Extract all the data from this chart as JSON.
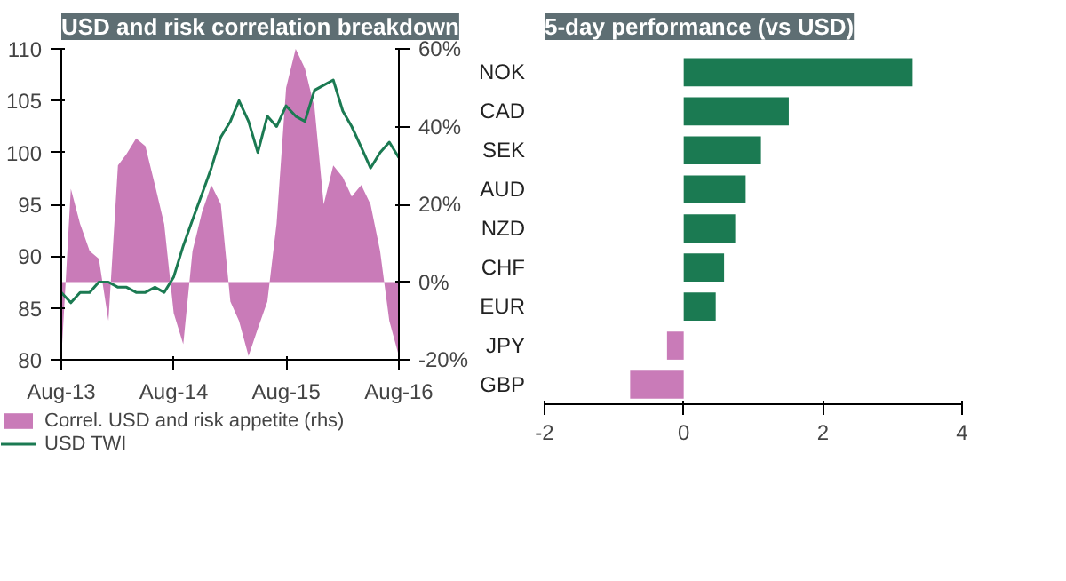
{
  "chart_data": [
    {
      "type": "line",
      "title": "USD and risk correlation breakdown",
      "x": [
        "2013-08",
        "2013-09",
        "2013-10",
        "2013-11",
        "2013-12",
        "2014-01",
        "2014-02",
        "2014-03",
        "2014-04",
        "2014-05",
        "2014-06",
        "2014-07",
        "2014-08",
        "2014-09",
        "2014-10",
        "2014-11",
        "2014-12",
        "2015-01",
        "2015-02",
        "2015-03",
        "2015-04",
        "2015-05",
        "2015-06",
        "2015-07",
        "2015-08",
        "2015-09",
        "2015-10",
        "2015-11",
        "2015-12",
        "2016-01",
        "2016-02",
        "2016-03",
        "2016-04",
        "2016-05",
        "2016-06",
        "2016-07",
        "2016-08"
      ],
      "series": [
        {
          "name": "Correl. USD and risk appetite (rhs)",
          "type": "area",
          "axis": "y2",
          "color": "#c97bb8",
          "values": [
            -20,
            24,
            15,
            8,
            6,
            -10,
            30,
            33,
            37,
            35,
            25,
            15,
            -8,
            -16,
            8,
            18,
            25,
            20,
            -5,
            -10,
            -19,
            -12,
            -5,
            15,
            50,
            60,
            55,
            45,
            20,
            30,
            27,
            22,
            25,
            20,
            8,
            -10,
            -19
          ]
        },
        {
          "name": "USD TWI",
          "type": "line",
          "color": "#1b7a52",
          "values": [
            86.5,
            85.5,
            86.5,
            86.5,
            87.5,
            87.5,
            87,
            87,
            86.5,
            86.5,
            87,
            86.5,
            88,
            91,
            93.5,
            96,
            98.5,
            101.5,
            103,
            105,
            103,
            100,
            103.5,
            102.5,
            104.5,
            103.5,
            103,
            106,
            106.5,
            107,
            104,
            102.5,
            100.5,
            98.5,
            100,
            101,
            99.5
          ]
        }
      ],
      "xlim": [
        "2013-08",
        "2016-08"
      ],
      "xticks": [
        {
          "value": "2013-08",
          "label": "Aug-13"
        },
        {
          "value": "2014-08",
          "label": "Aug-14"
        },
        {
          "value": "2015-08",
          "label": "Aug-15"
        },
        {
          "value": "2016-08",
          "label": "Aug-16"
        }
      ],
      "ylim": [
        80,
        110
      ],
      "yticks": [
        80,
        85,
        90,
        95,
        100,
        105,
        110
      ],
      "y2lim": [
        -20,
        60
      ],
      "y2ticks": [
        {
          "value": -20,
          "label": "-20%"
        },
        {
          "value": 0,
          "label": "0%"
        },
        {
          "value": 20,
          "label": "20%"
        },
        {
          "value": 40,
          "label": "40%"
        },
        {
          "value": 60,
          "label": "60%"
        }
      ],
      "grid": false,
      "legend": "bottom"
    },
    {
      "type": "bar",
      "orientation": "horizontal",
      "title": "5-day performance (vs USD)",
      "categories": [
        "NOK",
        "CAD",
        "SEK",
        "AUD",
        "NZD",
        "CHF",
        "EUR",
        "JPY",
        "GBP"
      ],
      "values": [
        3.29,
        1.51,
        1.11,
        0.89,
        0.74,
        0.58,
        0.46,
        -0.24,
        -0.77
      ],
      "colors": [
        "#1b7a52",
        "#1b7a52",
        "#1b7a52",
        "#1b7a52",
        "#1b7a52",
        "#1b7a52",
        "#1b7a52",
        "#c97bb8",
        "#c97bb8"
      ],
      "xlim": [
        -2,
        4
      ],
      "xticks": [
        -2,
        0,
        2,
        4
      ],
      "grid": false
    }
  ]
}
